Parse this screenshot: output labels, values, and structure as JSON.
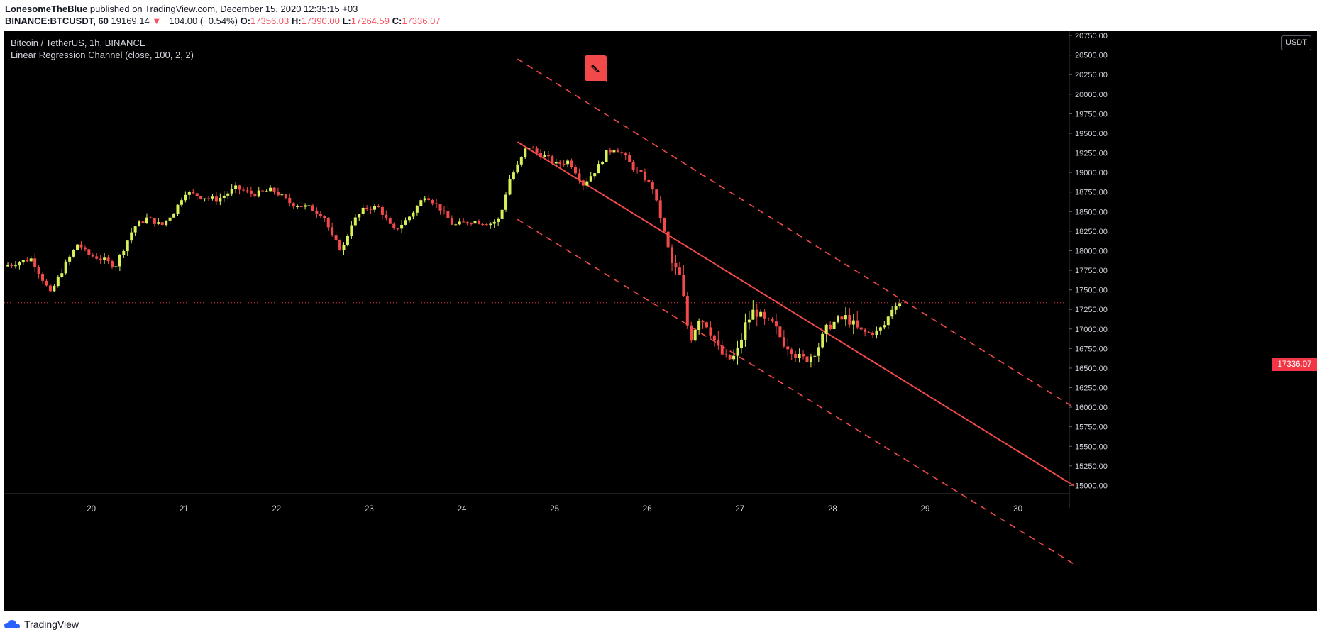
{
  "header": {
    "author": "LonesomeTheBlue",
    "published_text": "published on TradingView.com, December 15, 2020 12:35:15 +03",
    "symbol": "BINANCE:BTCUSDT, 60",
    "last_price": "19169.14",
    "change_arrow": "▼",
    "change": "−104.00 (−0.54%)",
    "open_label": "O:",
    "open": "17356.03",
    "high_label": "H:",
    "high": "17390.00",
    "low_label": "L:",
    "low": "17264.59",
    "close_label": "C:",
    "close": "17336.07"
  },
  "legend": {
    "title": "Bitcoin / TetherUS, 1h, BINANCE",
    "indicator": "Linear Regression Channel (close, 100, 2, 2)"
  },
  "currency_button": "USDT",
  "current_price_tag": "17336.07",
  "footer": {
    "brand": "TradingView",
    "logo_icon": "tradingview-cloud-icon"
  },
  "colors": {
    "bull": "#d9f05a",
    "bear": "#f24a4a",
    "regression": "#f24a4a",
    "background": "#000000",
    "price_line": "#f23645"
  },
  "chart_data": {
    "type": "candlestick",
    "y_axis_labels": [
      "20750.00",
      "20500.00",
      "20250.00",
      "20000.00",
      "19750.00",
      "19500.00",
      "19250.00",
      "19000.00",
      "18750.00",
      "18500.00",
      "18250.00",
      "18000.00",
      "17750.00",
      "17500.00",
      "17250.00",
      "17000.00",
      "16750.00",
      "16500.00",
      "16250.00",
      "16000.00",
      "15750.00",
      "15500.00",
      "15250.00",
      "15000.00"
    ],
    "x_axis_labels": [
      "20",
      "21",
      "22",
      "23",
      "24",
      "25",
      "26",
      "27",
      "28",
      "29",
      "30"
    ],
    "ylim": [
      14895,
      20805
    ],
    "current_price": 17336.07,
    "regression_channel": {
      "start_day": 24.6,
      "end_day": 30.6,
      "mid": [
        19390,
        15000
      ],
      "upper": [
        20450,
        16000
      ],
      "lower": [
        18400,
        14000
      ]
    },
    "price_path": [
      [
        19.1,
        17800
      ],
      [
        19.4,
        17900
      ],
      [
        19.6,
        17450
      ],
      [
        19.75,
        17800
      ],
      [
        19.9,
        18100
      ],
      [
        20.0,
        17950
      ],
      [
        20.15,
        17900
      ],
      [
        20.3,
        17800
      ],
      [
        20.5,
        18300
      ],
      [
        20.65,
        18420
      ],
      [
        20.8,
        18320
      ],
      [
        20.95,
        18520
      ],
      [
        21.05,
        18750
      ],
      [
        21.2,
        18700
      ],
      [
        21.4,
        18650
      ],
      [
        21.6,
        18800
      ],
      [
        21.8,
        18720
      ],
      [
        22.0,
        18780
      ],
      [
        22.2,
        18600
      ],
      [
        22.4,
        18550
      ],
      [
        22.55,
        18450
      ],
      [
        22.65,
        18150
      ],
      [
        22.75,
        18000
      ],
      [
        22.85,
        18350
      ],
      [
        23.0,
        18550
      ],
      [
        23.15,
        18550
      ],
      [
        23.3,
        18250
      ],
      [
        23.45,
        18400
      ],
      [
        23.55,
        18550
      ],
      [
        23.65,
        18720
      ],
      [
        23.8,
        18550
      ],
      [
        23.95,
        18320
      ],
      [
        24.15,
        18380
      ],
      [
        24.35,
        18350
      ],
      [
        24.45,
        18400
      ],
      [
        24.55,
        18900
      ],
      [
        24.65,
        19100
      ],
      [
        24.75,
        19350
      ],
      [
        24.85,
        19250
      ],
      [
        24.95,
        19200
      ],
      [
        25.05,
        19100
      ],
      [
        25.2,
        19150
      ],
      [
        25.35,
        18850
      ],
      [
        25.5,
        19050
      ],
      [
        25.6,
        19250
      ],
      [
        25.7,
        19320
      ],
      [
        25.8,
        19200
      ],
      [
        25.9,
        19050
      ],
      [
        26.0,
        18950
      ],
      [
        26.1,
        18800
      ],
      [
        26.2,
        18350
      ],
      [
        26.3,
        17850
      ],
      [
        26.4,
        17650
      ],
      [
        26.5,
        16850
      ],
      [
        26.6,
        17150
      ],
      [
        26.7,
        17050
      ],
      [
        26.8,
        16750
      ],
      [
        26.9,
        16600
      ],
      [
        27.0,
        16650
      ],
      [
        27.1,
        17050
      ],
      [
        27.2,
        17250
      ],
      [
        27.3,
        17100
      ],
      [
        27.4,
        17050
      ],
      [
        27.5,
        16850
      ],
      [
        27.6,
        16750
      ],
      [
        27.7,
        16600
      ],
      [
        27.8,
        16650
      ],
      [
        27.9,
        16800
      ],
      [
        28.0,
        17050
      ],
      [
        28.1,
        17100
      ],
      [
        28.2,
        17150
      ],
      [
        28.3,
        17000
      ],
      [
        28.4,
        16950
      ],
      [
        28.5,
        16950
      ],
      [
        28.6,
        17050
      ],
      [
        28.7,
        17300
      ],
      [
        28.75,
        17336
      ]
    ]
  }
}
